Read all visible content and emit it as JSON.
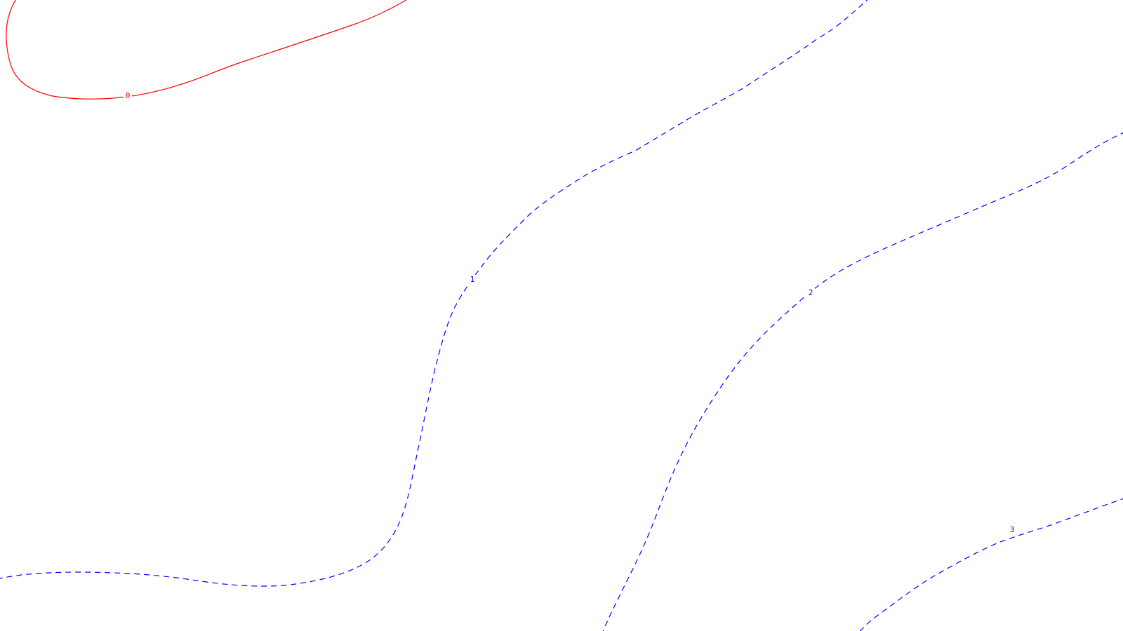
{
  "map": {
    "contours": [
      {
        "id": "contour-0",
        "label": "0",
        "level": 0,
        "style": "solid",
        "color": "#ff0000"
      },
      {
        "id": "contour-1",
        "label": "1",
        "level": 1,
        "style": "dashed",
        "color": "#0000ff"
      },
      {
        "id": "contour-2",
        "label": "2",
        "level": 2,
        "style": "dashed",
        "color": "#0000ff"
      },
      {
        "id": "contour-3",
        "label": "3",
        "level": 3,
        "style": "dashed",
        "color": "#0000ff"
      }
    ]
  }
}
